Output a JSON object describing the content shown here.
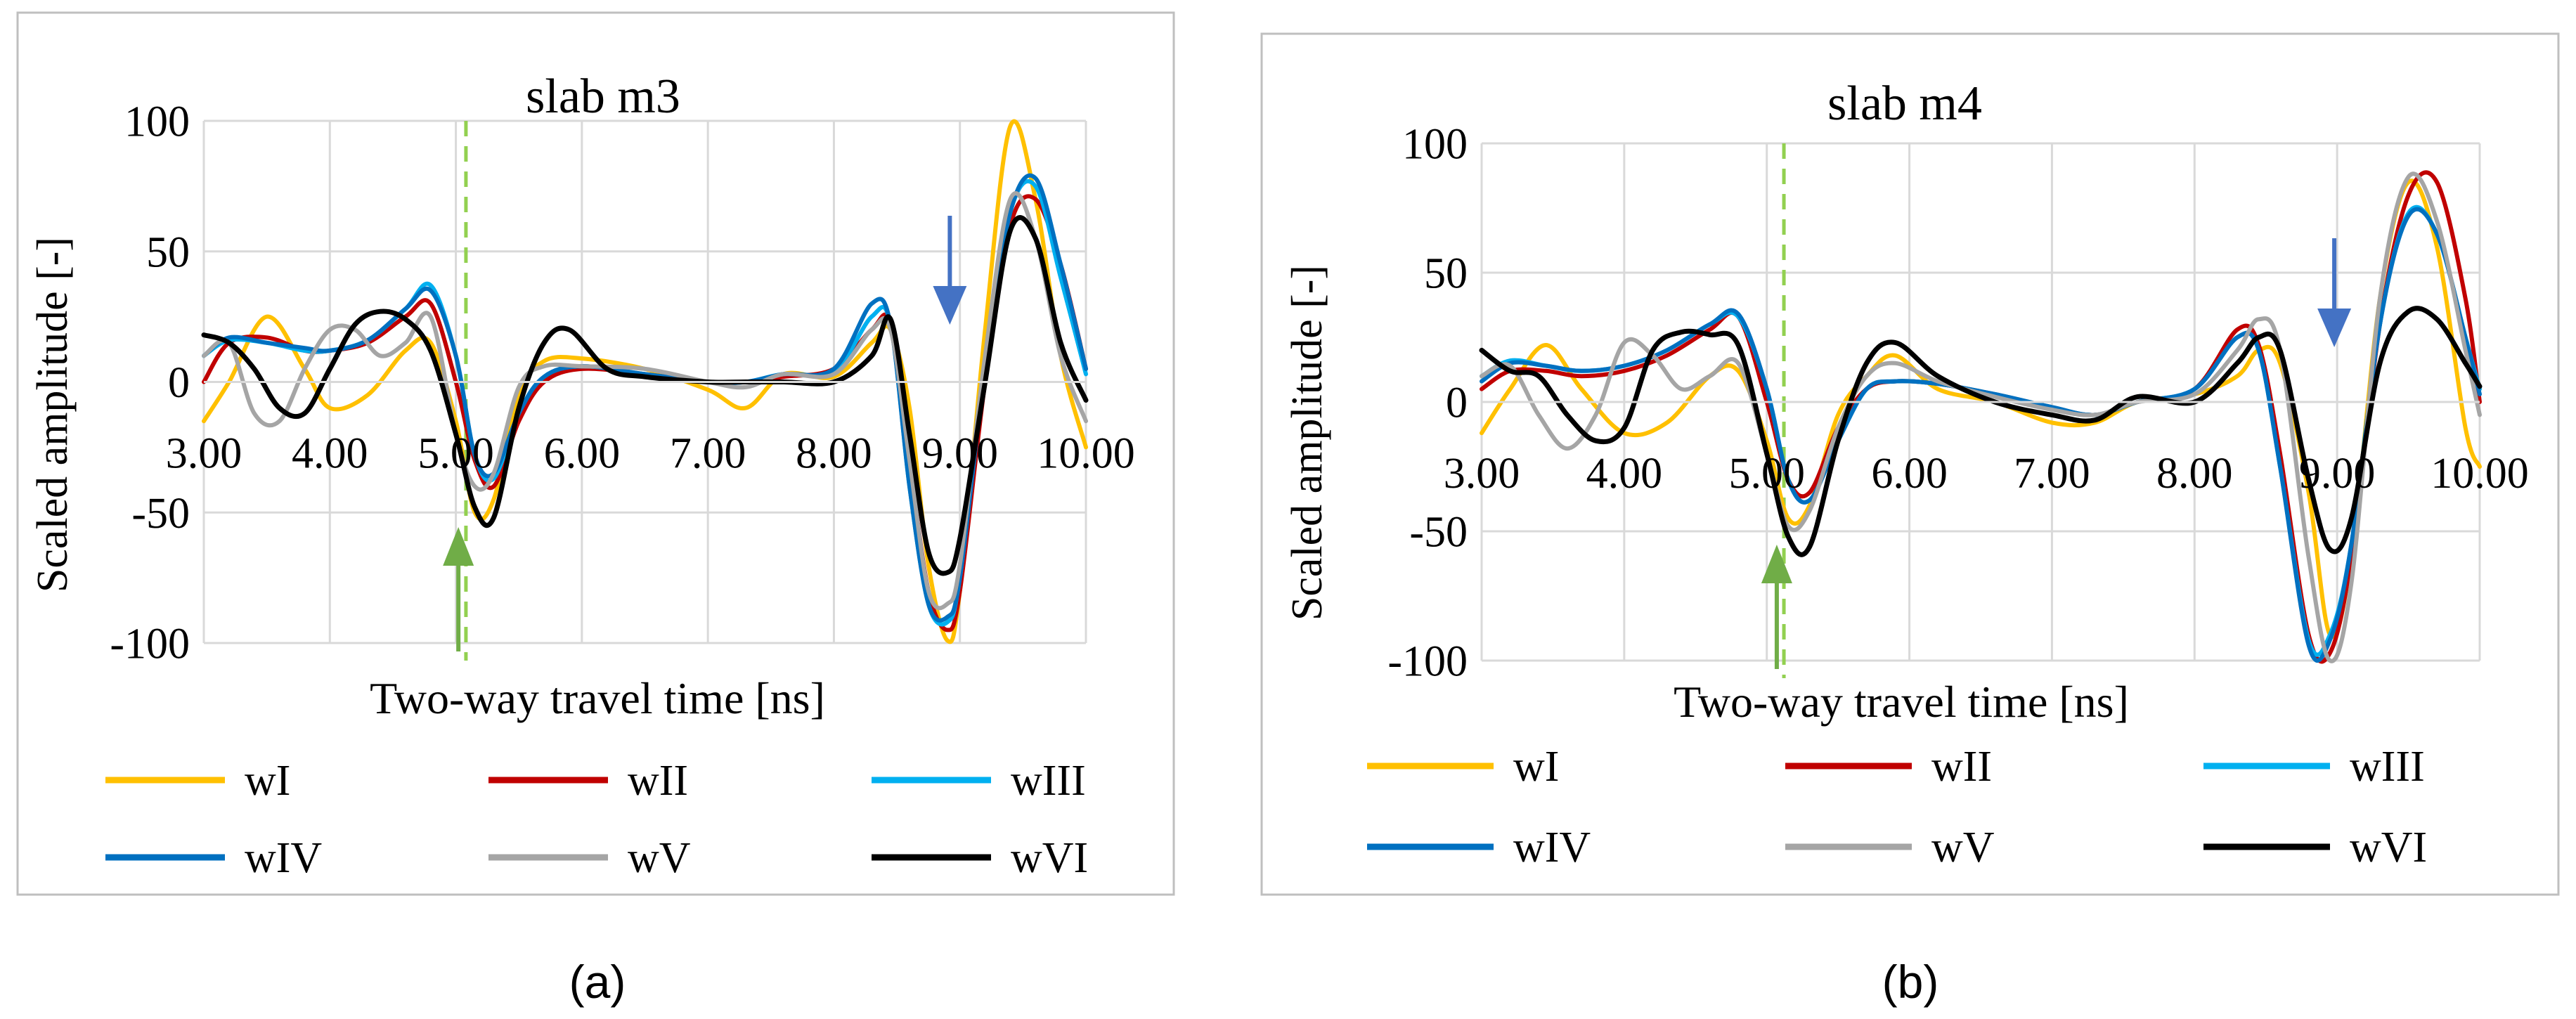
{
  "series_colors": {
    "wI": "#FFC000",
    "wII": "#C00000",
    "wIII": "#00B0F0",
    "wIV": "#0070C0",
    "wV": "#A5A5A5",
    "wVI": "#000000"
  },
  "marker_colors": {
    "dashed_line": "#92D050",
    "up_arrow": "#70AD47",
    "down_arrow": "#4472C4"
  },
  "chart_data": [
    {
      "type": "line",
      "panel_label": "(a)",
      "title": "slab m3",
      "xlabel": "Two-way travel time [ns]",
      "ylabel": "Scaled amplitude [-]",
      "xlim": [
        3,
        10
      ],
      "ylim": [
        -100,
        100
      ],
      "x_ticks": [
        3,
        4,
        5,
        6,
        7,
        8,
        9,
        10
      ],
      "x_tick_labels": [
        "3.00",
        "4.00",
        "5.00",
        "6.00",
        "7.00",
        "8.00",
        "9.00",
        "10.00"
      ],
      "y_ticks": [
        -100,
        -50,
        0,
        50,
        100
      ],
      "y_tick_labels": [
        "-100",
        "-50",
        "0",
        "50",
        "100"
      ],
      "legend": [
        "wI",
        "wII",
        "wIII",
        "wIV",
        "wV",
        "wVI"
      ],
      "markers": {
        "dashed_line_x": 5.08,
        "up_arrow_x": 5.02,
        "down_arrow_x": 8.92
      },
      "series": [
        {
          "name": "wI",
          "x": [
            3.0,
            3.2,
            3.5,
            3.8,
            4.0,
            4.3,
            4.6,
            4.8,
            5.0,
            5.15,
            5.3,
            5.5,
            5.7,
            6.0,
            6.5,
            7.0,
            7.3,
            7.6,
            8.0,
            8.3,
            8.45,
            8.6,
            8.75,
            8.9,
            9.0,
            9.2,
            9.4,
            9.6,
            9.8,
            10.0
          ],
          "y": [
            -15,
            0,
            25,
            5,
            -10,
            -5,
            12,
            15,
            -15,
            -50,
            -45,
            -5,
            8,
            9,
            5,
            -3,
            -10,
            3,
            2,
            15,
            20,
            -10,
            -70,
            -99,
            -80,
            20,
            98,
            70,
            10,
            -25
          ]
        },
        {
          "name": "wII",
          "x": [
            3.0,
            3.2,
            3.5,
            3.8,
            4.0,
            4.3,
            4.6,
            4.8,
            5.0,
            5.15,
            5.3,
            5.5,
            5.7,
            6.0,
            6.5,
            7.0,
            7.3,
            7.6,
            8.0,
            8.3,
            8.45,
            8.6,
            8.75,
            8.9,
            9.0,
            9.2,
            9.4,
            9.6,
            9.8,
            10.0
          ],
          "y": [
            0,
            15,
            17,
            12,
            12,
            15,
            25,
            30,
            0,
            -30,
            -40,
            -15,
            0,
            5,
            3,
            0,
            0,
            2,
            5,
            20,
            22,
            -30,
            -80,
            -95,
            -80,
            0,
            60,
            70,
            45,
            5
          ]
        },
        {
          "name": "wIII",
          "x": [
            3.0,
            3.2,
            3.5,
            3.8,
            4.0,
            4.3,
            4.6,
            4.8,
            5.0,
            5.15,
            5.3,
            5.5,
            5.7,
            6.0,
            6.5,
            7.0,
            7.3,
            7.6,
            8.0,
            8.3,
            8.45,
            8.6,
            8.75,
            8.9,
            9.0,
            9.2,
            9.4,
            9.6,
            9.8,
            10.0
          ],
          "y": [
            10,
            16,
            15,
            12,
            12,
            16,
            28,
            37,
            10,
            -28,
            -37,
            -12,
            2,
            6,
            3,
            0,
            0,
            3,
            4,
            25,
            22,
            -40,
            -85,
            -92,
            -75,
            5,
            65,
            75,
            40,
            3
          ]
        },
        {
          "name": "wIV",
          "x": [
            3.0,
            3.2,
            3.5,
            3.8,
            4.0,
            4.3,
            4.6,
            4.8,
            5.0,
            5.15,
            5.3,
            5.5,
            5.7,
            6.0,
            6.5,
            7.0,
            7.3,
            7.6,
            8.0,
            8.3,
            8.45,
            8.6,
            8.75,
            8.9,
            9.0,
            9.2,
            9.4,
            9.6,
            9.8,
            10.0
          ],
          "y": [
            10,
            17,
            15,
            13,
            12,
            16,
            28,
            35,
            10,
            -28,
            -35,
            -12,
            2,
            6,
            3,
            0,
            0,
            3,
            5,
            30,
            22,
            -40,
            -85,
            -90,
            -75,
            5,
            65,
            78,
            45,
            5
          ]
        },
        {
          "name": "wV",
          "x": [
            3.0,
            3.2,
            3.4,
            3.6,
            3.8,
            4.0,
            4.2,
            4.4,
            4.6,
            4.8,
            5.0,
            5.15,
            5.3,
            5.5,
            5.7,
            6.0,
            6.5,
            7.0,
            7.3,
            7.6,
            8.0,
            8.3,
            8.45,
            8.6,
            8.75,
            8.9,
            9.0,
            9.2,
            9.4,
            9.6,
            9.8,
            10.0
          ],
          "y": [
            10,
            15,
            -12,
            -15,
            5,
            20,
            20,
            10,
            15,
            25,
            -20,
            -40,
            -35,
            -2,
            6,
            6,
            5,
            0,
            -2,
            3,
            3,
            20,
            20,
            -30,
            -80,
            -85,
            -70,
            10,
            70,
            55,
            10,
            -15
          ]
        },
        {
          "name": "wVI",
          "x": [
            3.0,
            3.2,
            3.4,
            3.6,
            3.8,
            4.0,
            4.2,
            4.4,
            4.6,
            4.8,
            5.0,
            5.15,
            5.3,
            5.5,
            5.7,
            5.9,
            6.2,
            6.5,
            7.0,
            7.3,
            7.6,
            8.0,
            8.3,
            8.45,
            8.6,
            8.75,
            8.9,
            9.0,
            9.2,
            9.4,
            9.6,
            9.8,
            10.0
          ],
          "y": [
            18,
            15,
            5,
            -10,
            -12,
            5,
            22,
            27,
            24,
            12,
            -20,
            -48,
            -52,
            -10,
            15,
            20,
            5,
            2,
            0,
            0,
            0,
            0,
            10,
            24,
            -20,
            -65,
            -73,
            -60,
            0,
            58,
            55,
            15,
            -7
          ]
        }
      ]
    },
    {
      "type": "line",
      "panel_label": "(b)",
      "title": "slab m4",
      "xlabel": "Two-way travel time [ns]",
      "ylabel": "Scaled amplitude [-]",
      "xlim": [
        3,
        10
      ],
      "ylim": [
        -100,
        100
      ],
      "x_ticks": [
        3,
        4,
        5,
        6,
        7,
        8,
        9,
        10
      ],
      "x_tick_labels": [
        "3.00",
        "4.00",
        "5.00",
        "6.00",
        "7.00",
        "8.00",
        "9.00",
        "10.00"
      ],
      "y_ticks": [
        -100,
        -50,
        0,
        50,
        100
      ],
      "y_tick_labels": [
        "-100",
        "-50",
        "0",
        "50",
        "100"
      ],
      "legend": [
        "wI",
        "wII",
        "wIII",
        "wIV",
        "wV",
        "wVI"
      ],
      "markers": {
        "dashed_line_x": 5.12,
        "up_arrow_x": 5.07,
        "down_arrow_x": 8.98
      },
      "series": [
        {
          "name": "wI",
          "x": [
            3.0,
            3.2,
            3.45,
            3.7,
            4.0,
            4.3,
            4.6,
            4.8,
            5.0,
            5.15,
            5.3,
            5.5,
            5.7,
            5.9,
            6.2,
            6.6,
            7.0,
            7.3,
            7.6,
            8.0,
            8.3,
            8.45,
            8.6,
            8.8,
            8.95,
            9.1,
            9.3,
            9.5,
            9.7,
            9.9,
            10.0
          ],
          "y": [
            -12,
            5,
            22,
            5,
            -12,
            -8,
            10,
            12,
            -15,
            -45,
            -40,
            -5,
            10,
            18,
            5,
            0,
            -8,
            -8,
            0,
            3,
            10,
            20,
            15,
            -35,
            -90,
            -60,
            40,
            85,
            60,
            -10,
            -25
          ]
        },
        {
          "name": "wII",
          "x": [
            3.0,
            3.2,
            3.45,
            3.7,
            4.0,
            4.3,
            4.6,
            4.8,
            5.0,
            5.15,
            5.3,
            5.5,
            5.7,
            5.9,
            6.2,
            6.6,
            7.0,
            7.3,
            7.6,
            8.0,
            8.3,
            8.45,
            8.6,
            8.8,
            8.95,
            9.1,
            9.3,
            9.5,
            9.7,
            9.9,
            10.0
          ],
          "y": [
            5,
            12,
            12,
            10,
            12,
            18,
            28,
            33,
            0,
            -30,
            -35,
            -10,
            5,
            8,
            7,
            3,
            -2,
            -5,
            0,
            5,
            28,
            22,
            -20,
            -90,
            -97,
            -60,
            30,
            80,
            85,
            40,
            0
          ]
        },
        {
          "name": "wIII",
          "x": [
            3.0,
            3.2,
            3.45,
            3.7,
            4.0,
            4.3,
            4.6,
            4.8,
            5.0,
            5.15,
            5.3,
            5.5,
            5.7,
            5.9,
            6.2,
            6.6,
            7.0,
            7.3,
            7.6,
            8.0,
            8.3,
            8.45,
            8.6,
            8.8,
            8.95,
            9.1,
            9.3,
            9.5,
            9.7,
            9.9,
            10.0
          ],
          "y": [
            10,
            16,
            14,
            12,
            14,
            20,
            30,
            33,
            5,
            -30,
            -38,
            -15,
            5,
            8,
            7,
            3,
            -2,
            -5,
            0,
            5,
            25,
            20,
            -25,
            -92,
            -90,
            -55,
            30,
            73,
            65,
            25,
            5
          ]
        },
        {
          "name": "wIV",
          "x": [
            3.0,
            3.2,
            3.45,
            3.7,
            4.0,
            4.3,
            4.6,
            4.8,
            5.0,
            5.15,
            5.3,
            5.5,
            5.7,
            5.9,
            6.2,
            6.6,
            7.0,
            7.3,
            7.6,
            8.0,
            8.3,
            8.45,
            8.6,
            8.8,
            8.95,
            9.1,
            9.3,
            9.5,
            9.7,
            9.9,
            10.0
          ],
          "y": [
            8,
            15,
            14,
            12,
            14,
            20,
            30,
            34,
            5,
            -30,
            -38,
            -15,
            5,
            8,
            7,
            3,
            -2,
            -5,
            0,
            5,
            25,
            20,
            -25,
            -94,
            -92,
            -55,
            30,
            72,
            65,
            25,
            3
          ]
        },
        {
          "name": "wV",
          "x": [
            3.0,
            3.2,
            3.4,
            3.6,
            3.8,
            4.0,
            4.2,
            4.4,
            4.6,
            4.8,
            5.0,
            5.15,
            5.3,
            5.5,
            5.7,
            5.9,
            6.2,
            6.6,
            7.0,
            7.3,
            7.6,
            8.0,
            8.3,
            8.45,
            8.6,
            8.8,
            8.95,
            9.1,
            9.3,
            9.5,
            9.7,
            9.9,
            10.0
          ],
          "y": [
            10,
            14,
            -5,
            -18,
            -5,
            23,
            18,
            5,
            10,
            15,
            -20,
            -48,
            -42,
            -10,
            10,
            15,
            8,
            2,
            -3,
            -5,
            0,
            3,
            20,
            32,
            20,
            -60,
            -100,
            -70,
            40,
            87,
            70,
            20,
            -5
          ]
        },
        {
          "name": "wVI",
          "x": [
            3.0,
            3.2,
            3.4,
            3.6,
            3.8,
            4.0,
            4.2,
            4.4,
            4.6,
            4.8,
            5.0,
            5.15,
            5.3,
            5.5,
            5.7,
            5.9,
            6.2,
            6.6,
            7.0,
            7.3,
            7.6,
            8.0,
            8.3,
            8.45,
            8.6,
            8.8,
            8.95,
            9.1,
            9.3,
            9.5,
            9.7,
            9.9,
            10.0
          ],
          "y": [
            20,
            12,
            10,
            -5,
            -15,
            -10,
            20,
            27,
            26,
            22,
            -20,
            -52,
            -56,
            -15,
            15,
            23,
            10,
            0,
            -5,
            -7,
            2,
            0,
            15,
            25,
            20,
            -30,
            -57,
            -45,
            15,
            35,
            32,
            15,
            6
          ]
        }
      ]
    }
  ]
}
